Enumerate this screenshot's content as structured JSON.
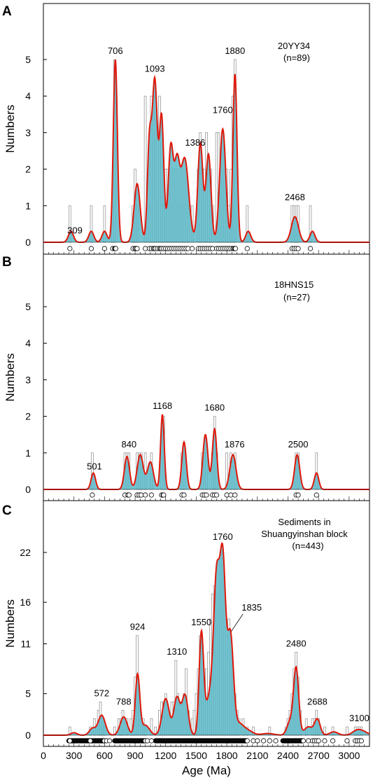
{
  "chart_data": [
    {
      "type": "bar",
      "panel": "A",
      "sample": "20YY34",
      "n_label": "(n=89)",
      "ylabel": "Numbers",
      "ylim": [
        0,
        5
      ],
      "yticks": [
        "0",
        "1",
        "2",
        "3",
        "4",
        "5"
      ],
      "peak_labels": [
        {
          "text": "309",
          "x": 309
        },
        {
          "text": "706",
          "x": 706
        },
        {
          "text": "1093",
          "x": 1093
        },
        {
          "text": "1386",
          "x": 1386
        },
        {
          "text": "1760",
          "x": 1760
        },
        {
          "text": "1880",
          "x": 1880
        },
        {
          "text": "2468",
          "x": 2468
        }
      ],
      "histogram": [
        [
          260,
          1
        ],
        [
          470,
          1
        ],
        [
          600,
          1
        ],
        [
          680,
          1
        ],
        [
          700,
          5
        ],
        [
          880,
          1
        ],
        [
          900,
          2
        ],
        [
          920,
          1
        ],
        [
          1000,
          4
        ],
        [
          1040,
          1
        ],
        [
          1060,
          4
        ],
        [
          1080,
          3
        ],
        [
          1100,
          4
        ],
        [
          1120,
          1
        ],
        [
          1140,
          4
        ],
        [
          1160,
          3
        ],
        [
          1180,
          1
        ],
        [
          1200,
          2
        ],
        [
          1220,
          2
        ],
        [
          1240,
          2
        ],
        [
          1260,
          1
        ],
        [
          1280,
          2
        ],
        [
          1300,
          2
        ],
        [
          1320,
          1
        ],
        [
          1340,
          2
        ],
        [
          1360,
          2
        ],
        [
          1380,
          1
        ],
        [
          1400,
          2
        ],
        [
          1420,
          1
        ],
        [
          1460,
          1
        ],
        [
          1520,
          2
        ],
        [
          1540,
          3
        ],
        [
          1560,
          2
        ],
        [
          1580,
          2
        ],
        [
          1600,
          3
        ],
        [
          1620,
          2
        ],
        [
          1640,
          2
        ],
        [
          1660,
          1
        ],
        [
          1700,
          3
        ],
        [
          1720,
          3
        ],
        [
          1740,
          2
        ],
        [
          1760,
          3
        ],
        [
          1780,
          1
        ],
        [
          1800,
          2
        ],
        [
          1820,
          1
        ],
        [
          1840,
          2
        ],
        [
          1860,
          4
        ],
        [
          1880,
          5
        ],
        [
          2000,
          1
        ],
        [
          2440,
          1
        ],
        [
          2460,
          1
        ],
        [
          2480,
          1
        ],
        [
          2500,
          1
        ],
        [
          2620,
          1
        ]
      ],
      "kde_peaks": [
        [
          270,
          0.3
        ],
        [
          470,
          0.3
        ],
        [
          600,
          0.3
        ],
        [
          706,
          5.0
        ],
        [
          920,
          1.6
        ],
        [
          1040,
          2.6
        ],
        [
          1093,
          4.4
        ],
        [
          1160,
          3.4
        ],
        [
          1250,
          2.6
        ],
        [
          1310,
          1.9
        ],
        [
          1386,
          2.3
        ],
        [
          1540,
          2.7
        ],
        [
          1620,
          2.4
        ],
        [
          1760,
          3.1
        ],
        [
          1880,
          4.6
        ],
        [
          2010,
          0.3
        ],
        [
          2468,
          0.7
        ],
        [
          2640,
          0.3
        ]
      ],
      "kde_widths": [
        25,
        25,
        25,
        20,
        30,
        20,
        25,
        22,
        25,
        25,
        40,
        25,
        25,
        30,
        20,
        25,
        35,
        25
      ],
      "ages": [
        260,
        470,
        600,
        680,
        700,
        700,
        705,
        710,
        880,
        900,
        910,
        920,
        1000,
        1040,
        1060,
        1080,
        1090,
        1100,
        1120,
        1140,
        1150,
        1160,
        1180,
        1200,
        1220,
        1240,
        1260,
        1280,
        1300,
        1320,
        1340,
        1360,
        1380,
        1400,
        1420,
        1460,
        1520,
        1540,
        1560,
        1580,
        1600,
        1620,
        1640,
        1660,
        1700,
        1720,
        1740,
        1760,
        1780,
        1800,
        1820,
        1840,
        1860,
        1870,
        1880,
        1885,
        2000,
        2440,
        2460,
        2480,
        2500,
        2620
      ]
    },
    {
      "type": "bar",
      "panel": "B",
      "sample": "18HNS15",
      "n_label": "(n=27)",
      "ylabel": "Numbers",
      "ylim": [
        0,
        5
      ],
      "yticks": [
        "0",
        "1",
        "2",
        "3",
        "4",
        "5"
      ],
      "peak_labels": [
        {
          "text": "501",
          "x": 501
        },
        {
          "text": "840",
          "x": 840
        },
        {
          "text": "1168",
          "x": 1168
        },
        {
          "text": "1680",
          "x": 1680
        },
        {
          "text": "1876",
          "x": 1876
        },
        {
          "text": "2500",
          "x": 2500
        }
      ],
      "histogram": [
        [
          480,
          1
        ],
        [
          800,
          1
        ],
        [
          820,
          1
        ],
        [
          840,
          1
        ],
        [
          920,
          1
        ],
        [
          940,
          1
        ],
        [
          960,
          1
        ],
        [
          1000,
          1
        ],
        [
          1060,
          1
        ],
        [
          1160,
          1
        ],
        [
          1180,
          2
        ],
        [
          1360,
          1
        ],
        [
          1380,
          1
        ],
        [
          1560,
          1
        ],
        [
          1580,
          1
        ],
        [
          1600,
          1
        ],
        [
          1660,
          1
        ],
        [
          1680,
          2
        ],
        [
          1700,
          1
        ],
        [
          1800,
          1
        ],
        [
          1840,
          1
        ],
        [
          1880,
          1
        ],
        [
          2480,
          1
        ],
        [
          2500,
          1
        ],
        [
          2680,
          1
        ]
      ],
      "kde_peaks": [
        [
          490,
          0.45
        ],
        [
          820,
          0.9
        ],
        [
          950,
          0.95
        ],
        [
          1050,
          0.75
        ],
        [
          1168,
          2.05
        ],
        [
          1380,
          1.3
        ],
        [
          1590,
          1.5
        ],
        [
          1680,
          1.65
        ],
        [
          1860,
          0.95
        ],
        [
          2490,
          0.95
        ],
        [
          2680,
          0.45
        ]
      ],
      "kde_widths": [
        22,
        25,
        30,
        30,
        18,
        22,
        25,
        22,
        30,
        25,
        22
      ],
      "ages": [
        480,
        800,
        830,
        840,
        920,
        940,
        960,
        1000,
        1060,
        1160,
        1175,
        1180,
        1360,
        1380,
        1560,
        1580,
        1600,
        1660,
        1680,
        1700,
        1800,
        1840,
        1880,
        2480,
        2500,
        2680
      ]
    },
    {
      "type": "bar",
      "panel": "C",
      "sample_line1": "Sediments in",
      "sample_line2": "Shuangyinshan block",
      "n_label": "(n=443)",
      "ylabel": "Numbers",
      "ylim": [
        0,
        28
      ],
      "yticks": [
        "0",
        "5",
        "11",
        "16",
        "22"
      ],
      "ytick_values": [
        0,
        5,
        11,
        16,
        22
      ],
      "peak_labels": [
        {
          "text": "572",
          "x": 572
        },
        {
          "text": "788",
          "x": 788
        },
        {
          "text": "924",
          "x": 924
        },
        {
          "text": "1310",
          "x": 1310
        },
        {
          "text": "1550",
          "x": 1550
        },
        {
          "text": "1760",
          "x": 1760
        },
        {
          "text": "1835",
          "x": 1835
        },
        {
          "text": "2480",
          "x": 2480
        },
        {
          "text": "2688",
          "x": 2688
        },
        {
          "text": "3100",
          "x": 3100
        }
      ],
      "histogram": [
        [
          260,
          1
        ],
        [
          460,
          1
        ],
        [
          500,
          2
        ],
        [
          540,
          3
        ],
        [
          560,
          4
        ],
        [
          580,
          2
        ],
        [
          600,
          1
        ],
        [
          700,
          1
        ],
        [
          740,
          2
        ],
        [
          760,
          2
        ],
        [
          780,
          3
        ],
        [
          820,
          2
        ],
        [
          860,
          2
        ],
        [
          880,
          3
        ],
        [
          900,
          7
        ],
        [
          920,
          12
        ],
        [
          940,
          4
        ],
        [
          980,
          2
        ],
        [
          1000,
          1
        ],
        [
          1060,
          2
        ],
        [
          1100,
          1
        ],
        [
          1140,
          3
        ],
        [
          1160,
          4
        ],
        [
          1180,
          4
        ],
        [
          1200,
          5
        ],
        [
          1220,
          3
        ],
        [
          1240,
          2
        ],
        [
          1260,
          4
        ],
        [
          1280,
          4
        ],
        [
          1300,
          9
        ],
        [
          1320,
          5
        ],
        [
          1340,
          4
        ],
        [
          1360,
          4
        ],
        [
          1380,
          5
        ],
        [
          1400,
          8
        ],
        [
          1420,
          3
        ],
        [
          1440,
          1
        ],
        [
          1460,
          2
        ],
        [
          1480,
          3
        ],
        [
          1500,
          5
        ],
        [
          1520,
          8
        ],
        [
          1540,
          12
        ],
        [
          1560,
          9
        ],
        [
          1580,
          7
        ],
        [
          1600,
          8
        ],
        [
          1620,
          10
        ],
        [
          1640,
          14
        ],
        [
          1660,
          17
        ],
        [
          1680,
          18
        ],
        [
          1700,
          13
        ],
        [
          1720,
          17
        ],
        [
          1740,
          22
        ],
        [
          1760,
          22
        ],
        [
          1780,
          13
        ],
        [
          1800,
          12
        ],
        [
          1820,
          14
        ],
        [
          1840,
          10
        ],
        [
          1860,
          7
        ],
        [
          1880,
          5
        ],
        [
          1900,
          3
        ],
        [
          1920,
          2
        ],
        [
          1960,
          2
        ],
        [
          2000,
          1
        ],
        [
          2060,
          1
        ],
        [
          2220,
          1
        ],
        [
          2380,
          1
        ],
        [
          2400,
          2
        ],
        [
          2420,
          3
        ],
        [
          2440,
          5
        ],
        [
          2460,
          8
        ],
        [
          2480,
          10
        ],
        [
          2500,
          7
        ],
        [
          2520,
          3
        ],
        [
          2580,
          2
        ],
        [
          2640,
          2
        ],
        [
          2660,
          2
        ],
        [
          2680,
          3
        ],
        [
          2700,
          2
        ],
        [
          2760,
          1
        ],
        [
          2840,
          1
        ],
        [
          2980,
          1
        ],
        [
          3060,
          1
        ],
        [
          3080,
          1
        ],
        [
          3100,
          1
        ],
        [
          3120,
          1
        ]
      ],
      "kde_peaks": [
        [
          300,
          0.3
        ],
        [
          480,
          0.8
        ],
        [
          572,
          2.4
        ],
        [
          788,
          2.2
        ],
        [
          924,
          7.2
        ],
        [
          1000,
          1.2
        ],
        [
          1200,
          4.4
        ],
        [
          1310,
          4.5
        ],
        [
          1390,
          4.8
        ],
        [
          1550,
          11.9
        ],
        [
          1640,
          5.0
        ],
        [
          1700,
          16.5
        ],
        [
          1760,
          20.5
        ],
        [
          1835,
          12.0
        ],
        [
          1920,
          1.2
        ],
        [
          2000,
          0.6
        ],
        [
          2200,
          0.2
        ],
        [
          2420,
          1.6
        ],
        [
          2480,
          8.0
        ],
        [
          2600,
          1.0
        ],
        [
          2688,
          1.9
        ],
        [
          2850,
          0.4
        ],
        [
          3080,
          0.6
        ],
        [
          3150,
          0.3
        ]
      ],
      "kde_widths": [
        30,
        30,
        35,
        35,
        22,
        40,
        35,
        30,
        30,
        22,
        45,
        28,
        28,
        30,
        40,
        50,
        60,
        30,
        25,
        40,
        28,
        40,
        45,
        40
      ],
      "ages_dense": [
        [
          250,
          600
        ],
        [
          700,
          1000
        ],
        [
          1100,
          2000
        ],
        [
          2350,
          2550
        ]
      ],
      "ages_sparse": [
        260,
        460,
        620,
        650,
        1020,
        1060,
        2060,
        2100,
        2160,
        2220,
        2280,
        2600,
        2640,
        2660,
        2680,
        2700,
        2760,
        2840,
        2980,
        3060,
        3080,
        3100,
        3120
      ]
    }
  ],
  "panels": {
    "A_label": "A",
    "B_label": "B",
    "C_label": "C"
  },
  "x_axis": {
    "label": "Age (Ma)",
    "xlim": [
      0,
      3200
    ],
    "ticks": [
      "0",
      "300",
      "600",
      "900",
      "1200",
      "1500",
      "1800",
      "2100",
      "2400",
      "2700",
      "3000"
    ],
    "tick_values": [
      0,
      300,
      600,
      900,
      1200,
      1500,
      1800,
      2100,
      2400,
      2700,
      3000
    ]
  },
  "colors": {
    "bar_fill": "#5ab8c8",
    "bar_outline": "#999999",
    "kde_line": "#e0180a",
    "circle": "#000000"
  }
}
